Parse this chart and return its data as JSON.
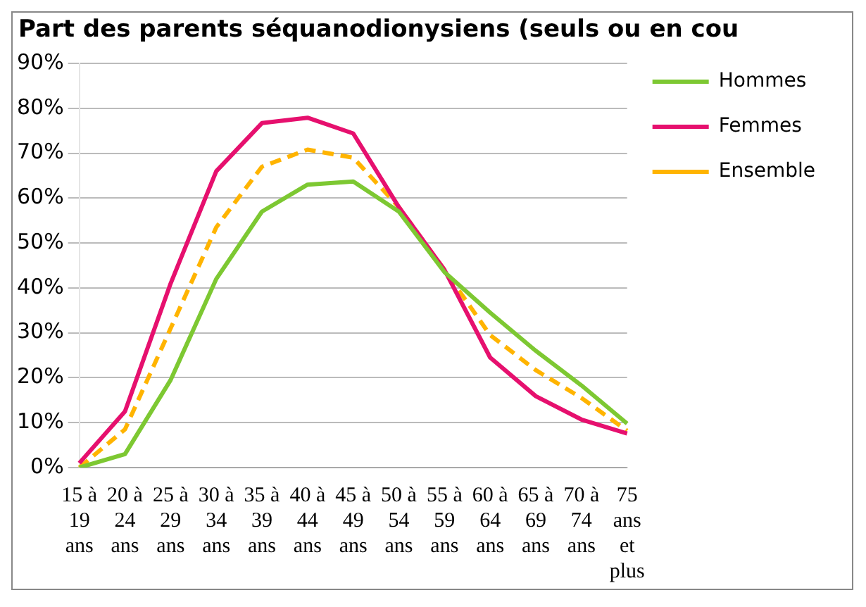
{
  "chart_data": {
    "type": "line",
    "title": "Part des parents séquanodionysiens (seuls ou en cou",
    "categories": [
      "15 à\n19\nans",
      "20 à\n24\nans",
      "25 à\n29\nans",
      "30 à\n34\nans",
      "35 à\n39\nans",
      "40 à\n44\nans",
      "45 à\n49\nans",
      "50 à\n54\nans",
      "55 à\n59\nans",
      "60 à\n64\nans",
      "65 à\n69\nans",
      "70 à\n74\nans",
      "75\nans\net\nplus"
    ],
    "series": [
      {
        "name": "Hommes",
        "color": "#7dc832",
        "values": [
          0,
          3,
          19.5,
          42,
          57,
          63,
          63.7,
          57,
          43.5,
          34.5,
          26,
          18.3,
          9.8
        ]
      },
      {
        "name": "Femmes",
        "color": "#e6106e",
        "values": [
          1,
          12.5,
          41,
          66,
          76.7,
          77.9,
          74.4,
          58,
          44,
          24.5,
          15.9,
          10.7,
          7.6
        ]
      },
      {
        "name": "Ensemble",
        "color": "#ffb400",
        "line_style": "dashed",
        "values": [
          0,
          8.5,
          31,
          53.5,
          67,
          70.8,
          69,
          58,
          44,
          29.5,
          21.7,
          15.5,
          8.2
        ]
      }
    ],
    "ylim": [
      0,
      90
    ],
    "yticks": [
      {
        "value": 0,
        "label": "0%"
      },
      {
        "value": 10,
        "label": "10%"
      },
      {
        "value": 20,
        "label": "20%"
      },
      {
        "value": 30,
        "label": "30%"
      },
      {
        "value": 40,
        "label": "40%"
      },
      {
        "value": 50,
        "label": "50%"
      },
      {
        "value": 60,
        "label": "60%"
      },
      {
        "value": 70,
        "label": "70%"
      },
      {
        "value": 80,
        "label": "80%"
      },
      {
        "value": 90,
        "label": "90%"
      }
    ],
    "grid": "y",
    "legend": "top right",
    "marker": "none"
  }
}
